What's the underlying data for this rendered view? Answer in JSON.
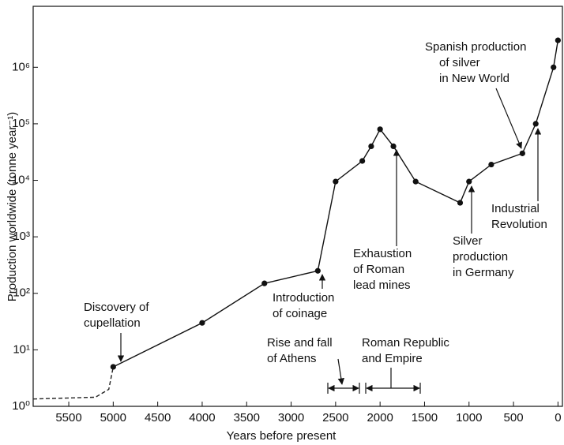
{
  "chart_data": {
    "type": "line",
    "xlabel": "Years before present",
    "ylabel": "Production worldwide (tonne year⁻¹)",
    "log_y": true,
    "xlim": [
      5900,
      -50
    ],
    "ylim": [
      1,
      12000000
    ],
    "xticks": [
      5500,
      5000,
      4500,
      4000,
      3500,
      3000,
      2500,
      2000,
      1500,
      1000,
      500,
      0
    ],
    "yticks": [
      {
        "value": 1,
        "label": "10⁰"
      },
      {
        "value": 10,
        "label": "10¹"
      },
      {
        "value": 100,
        "label": "10²"
      },
      {
        "value": 1000,
        "label": "10³"
      },
      {
        "value": 10000,
        "label": "10⁴"
      },
      {
        "value": 100000,
        "label": "10⁵"
      },
      {
        "value": 1000000,
        "label": "10⁶"
      }
    ],
    "series": [
      {
        "style": "dashed",
        "color": "#222222",
        "x": [
          5900,
          5200,
          5050,
          5000
        ],
        "values": [
          1.35,
          1.45,
          2,
          5
        ]
      },
      {
        "style": "solid",
        "color": "#111111",
        "markers": true,
        "x": [
          5000,
          4000,
          3300,
          2700,
          2500,
          2200,
          2100,
          2000,
          1850,
          1600,
          1100,
          1000,
          750,
          400,
          250,
          50,
          0
        ],
        "values": [
          5,
          30,
          150,
          250,
          9500,
          22000,
          40000,
          80000,
          40000,
          9500,
          4000,
          9500,
          19000,
          30000,
          100000,
          1000000,
          3000000
        ]
      }
    ],
    "annotations": [
      {
        "lines": [
          "Discovery of",
          "cupellation"
        ]
      },
      {
        "lines": [
          "Introduction",
          "of coinage"
        ]
      },
      {
        "lines": [
          "Exhaustion",
          "of Roman",
          "lead mines"
        ]
      },
      {
        "lines": [
          "Silver",
          "production",
          "in Germany"
        ]
      },
      {
        "lines": [
          "Industrial",
          "Revolution"
        ]
      },
      {
        "lines": [
          "Spanish production",
          "of silver",
          "in New World"
        ]
      },
      {
        "lines": [
          "Rise and fall",
          "of Athens"
        ]
      },
      {
        "lines": [
          "Roman Republic",
          "and Empire"
        ]
      }
    ]
  }
}
